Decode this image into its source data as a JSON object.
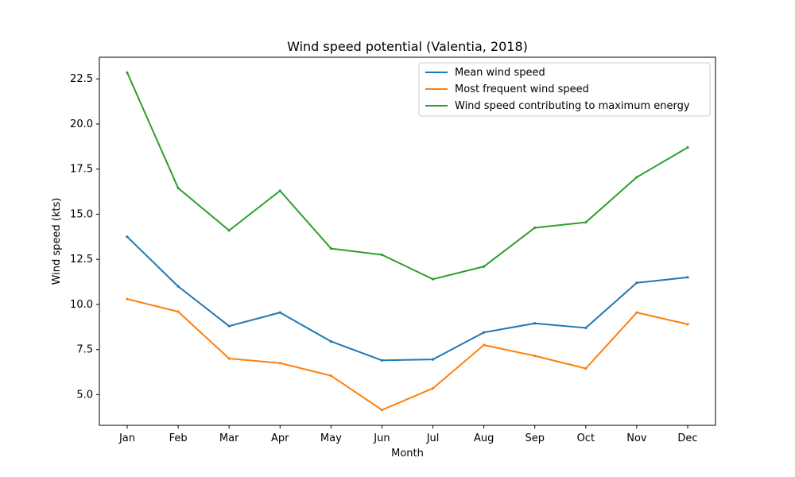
{
  "chart_data": {
    "type": "line",
    "title": "Wind speed potential (Valentia, 2018)",
    "xlabel": "Month",
    "ylabel": "Wind speed (kts)",
    "categories": [
      "Jan",
      "Feb",
      "Mar",
      "Apr",
      "May",
      "Jun",
      "Jul",
      "Aug",
      "Sep",
      "Oct",
      "Nov",
      "Dec"
    ],
    "ylim": [
      3.3,
      23.7
    ],
    "yticks": [
      "5.0",
      "7.5",
      "10.0",
      "12.5",
      "15.0",
      "17.5",
      "20.0",
      "22.5"
    ],
    "grid": false,
    "legend_position": "top-right",
    "series": [
      {
        "name": "Mean wind speed",
        "color": "#1f77b4",
        "values": [
          13.75,
          11.0,
          8.8,
          9.55,
          7.95,
          6.9,
          6.95,
          8.45,
          8.95,
          8.7,
          11.2,
          11.5
        ]
      },
      {
        "name": "Most frequent wind speed",
        "color": "#ff7f0e",
        "values": [
          10.3,
          9.6,
          7.0,
          6.75,
          6.05,
          4.15,
          5.35,
          7.75,
          7.15,
          6.45,
          9.55,
          8.9
        ]
      },
      {
        "name": "Wind speed contributing to maximum energy",
        "color": "#2ca02c",
        "values": [
          22.85,
          16.45,
          14.1,
          16.3,
          13.1,
          12.75,
          11.4,
          12.1,
          14.25,
          14.55,
          17.05,
          18.7
        ]
      }
    ]
  }
}
